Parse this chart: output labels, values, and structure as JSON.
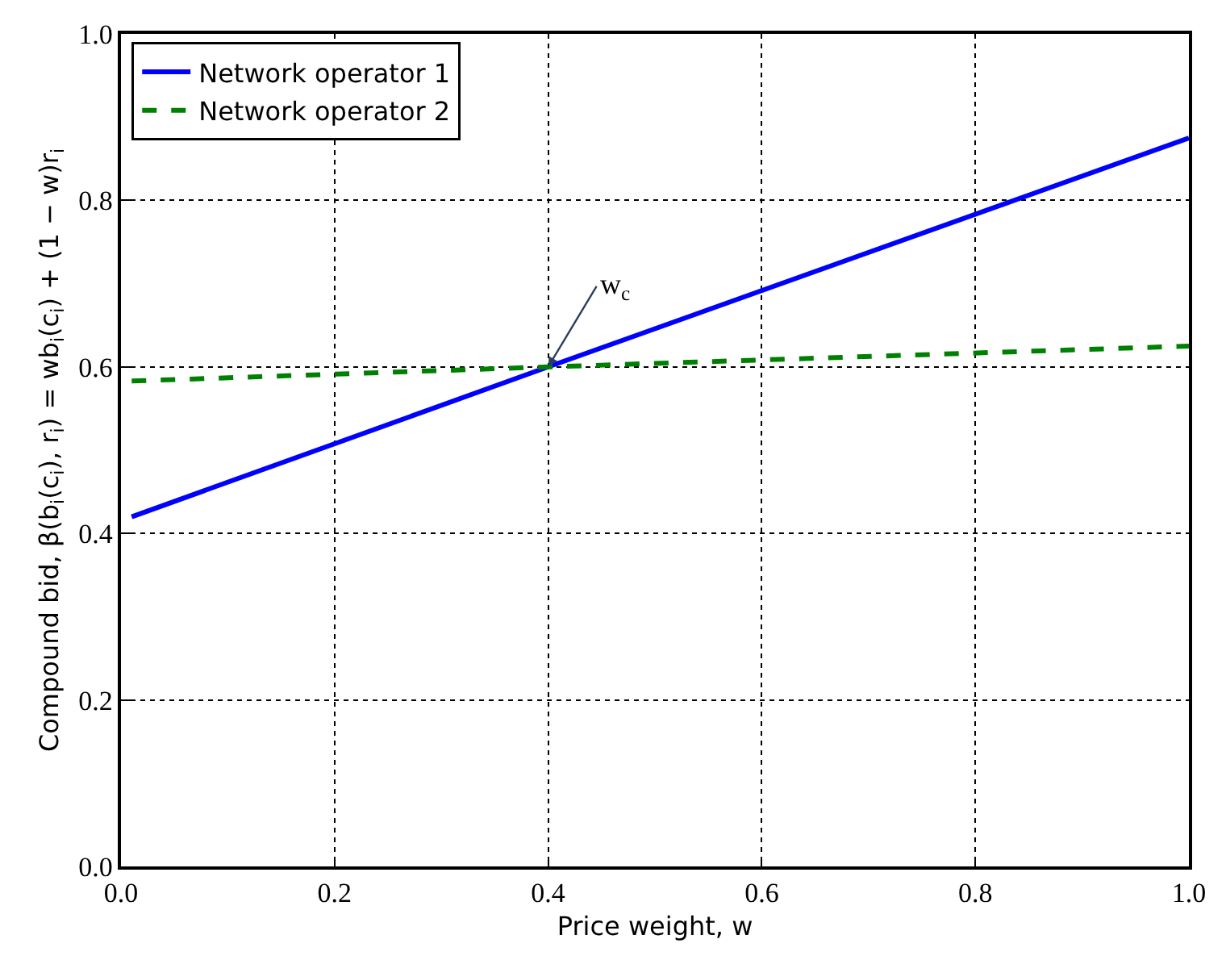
{
  "chart_data": {
    "type": "line",
    "xlabel": "Price weight, w",
    "ylabel": "Compound bid, β(b$_{i}$(c$_{i}$), r$_{i}$) = wb$_{i}$(c$_{i}$) + (1 − w)r$_{i}$",
    "series": [
      {
        "name": "Network operator 1",
        "color": "#0000ff",
        "line_style": "solid",
        "x": [
          0.01,
          0.4,
          1.0
        ],
        "values": [
          0.42,
          0.6,
          0.875
        ]
      },
      {
        "name": "Network operator 2",
        "color": "#008000",
        "line_style": "dashed",
        "x": [
          0.01,
          0.4,
          1.0
        ],
        "values": [
          0.583,
          0.6,
          0.625
        ]
      }
    ],
    "annotations": [
      {
        "text": "w$_{c}$",
        "x": 0.4,
        "y": 0.6
      }
    ],
    "xlim": [
      0.0,
      1.0
    ],
    "xticks": [
      {
        "value": 0.0,
        "label": "0.0"
      },
      0.2,
      0.4,
      0.6,
      0.8,
      {
        "value": 1.0,
        "label": "1.0"
      }
    ],
    "ylim": [
      0.0,
      1.0
    ],
    "yticks": [
      {
        "value": 0.0,
        "label": "0.0"
      },
      0.2,
      0.4,
      0.6,
      0.8,
      {
        "value": 1.0,
        "label": "1.0"
      }
    ],
    "grid": true,
    "legend": "top left",
    "marker": "none"
  }
}
